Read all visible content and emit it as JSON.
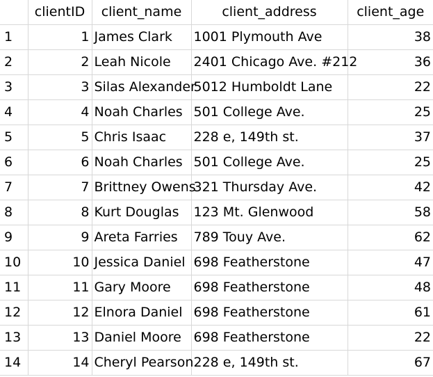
{
  "columns": [
    "",
    "clientID",
    "client_name",
    "client_address",
    "client_age"
  ],
  "rows": [
    {
      "row_number": "1",
      "clientID": "1",
      "client_name": "James Clark",
      "client_address": "1001 Plymouth Ave",
      "client_age": "38"
    },
    {
      "row_number": "2",
      "clientID": "2",
      "client_name": "Leah Nicole",
      "client_address": "2401 Chicago Ave. #212",
      "client_age": "36"
    },
    {
      "row_number": "3",
      "clientID": "3",
      "client_name": "Silas Alexander",
      "client_address": "5012 Humboldt Lane",
      "client_age": "22"
    },
    {
      "row_number": "4",
      "clientID": "4",
      "client_name": "Noah Charles",
      "client_address": "501 College Ave.",
      "client_age": "25"
    },
    {
      "row_number": "5",
      "clientID": "5",
      "client_name": "Chris Isaac",
      "client_address": "228 e, 149th st.",
      "client_age": "37"
    },
    {
      "row_number": "6",
      "clientID": "6",
      "client_name": "Noah Charles",
      "client_address": "501 College Ave.",
      "client_age": "25"
    },
    {
      "row_number": "7",
      "clientID": "7",
      "client_name": "Brittney Owens",
      "client_address": "321 Thursday Ave.",
      "client_age": "42"
    },
    {
      "row_number": "8",
      "clientID": "8",
      "client_name": "Kurt Douglas",
      "client_address": "123 Mt. Glenwood",
      "client_age": "58"
    },
    {
      "row_number": "9",
      "clientID": "9",
      "client_name": "Areta Farries",
      "client_address": "789 Touy Ave.",
      "client_age": "62"
    },
    {
      "row_number": "10",
      "clientID": "10",
      "client_name": "Jessica Daniel",
      "client_address": "698 Featherstone",
      "client_age": "47"
    },
    {
      "row_number": "11",
      "clientID": "11",
      "client_name": "Gary Moore",
      "client_address": "698 Featherstone",
      "client_age": "48"
    },
    {
      "row_number": "12",
      "clientID": "12",
      "client_name": "Elnora Daniel",
      "client_address": "698 Featherstone",
      "client_age": "61"
    },
    {
      "row_number": "13",
      "clientID": "13",
      "client_name": "Daniel Moore",
      "client_address": "698 Featherstone",
      "client_age": "22"
    },
    {
      "row_number": "14",
      "clientID": "14",
      "client_name": "Cheryl Pearson",
      "client_address": "228 e, 149th st.",
      "client_age": "67"
    }
  ]
}
